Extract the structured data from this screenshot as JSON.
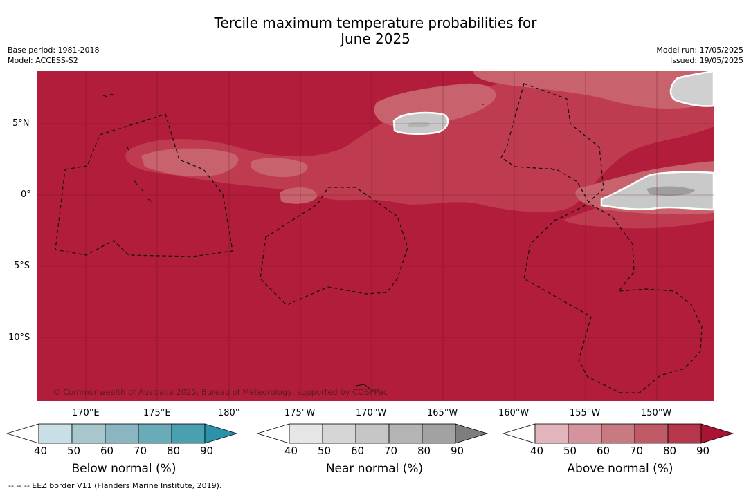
{
  "header": {
    "title_line1": "Tercile maximum temperature probabilities for",
    "title_line2": "June 2025",
    "base_period": "Base period: 1981-2018",
    "model": "Model: ACCESS-S2",
    "model_run": "Model run: 17/05/2025",
    "issued": "Issued: 19/05/2025"
  },
  "map": {
    "lat_labels": [
      "5°N",
      "0°",
      "5°S",
      "10°S"
    ],
    "lon_labels": [
      "170°E",
      "175°E",
      "180°",
      "175°W",
      "170°W",
      "165°W",
      "160°W",
      "155°W",
      "150°W"
    ],
    "credit": "© Commonwealth of Australia 2025, Bureau of Meteorology, supported by COSPPac",
    "colors": {
      "above_90": "#b21d3b",
      "above_80": "#bf3c50",
      "above_70": "#c8626d",
      "near_60": "#c8c8c8",
      "near_70": "#b4b4b4",
      "near_80": "#9e9e9e"
    }
  },
  "colorbars": {
    "ticks": [
      "40",
      "50",
      "60",
      "70",
      "80",
      "90"
    ],
    "below": {
      "label": "Below normal (%)",
      "colors": [
        "#ffffff",
        "#c7dfe5",
        "#a8c7cd",
        "#8bb6c1",
        "#6aabb8",
        "#4aa0b0",
        "#2b93a8"
      ]
    },
    "near": {
      "label": "Near normal (%)",
      "colors": [
        "#ffffff",
        "#e6e6e6",
        "#d6d6d6",
        "#c6c6c6",
        "#b4b4b4",
        "#a2a2a2",
        "#7e7e7e"
      ]
    },
    "above": {
      "label": "Above normal (%)",
      "colors": [
        "#ffffff",
        "#e2b5bc",
        "#d5939d",
        "#c87a80",
        "#c05a67",
        "#b8364b",
        "#a81432"
      ]
    }
  },
  "footer": {
    "eez_note": "--  --  -- EEZ border V11 (Flanders Marine Institute, 2019)."
  }
}
